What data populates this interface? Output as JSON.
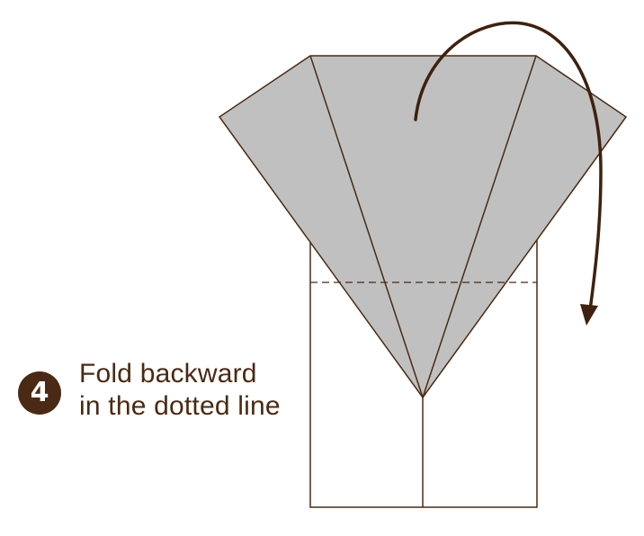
{
  "step": {
    "number": "4",
    "instruction_line1": "Fold backward",
    "instruction_line2": "in the dotted line"
  },
  "colors": {
    "paper": "#c0c0c0",
    "outline": "#4a2a14",
    "arrow": "#3e210f",
    "badge": "#4a2a14",
    "text": "#4a2a14"
  },
  "icons": {
    "arrow": "curved-arrow-icon",
    "fold_line": "dotted-fold-line"
  }
}
